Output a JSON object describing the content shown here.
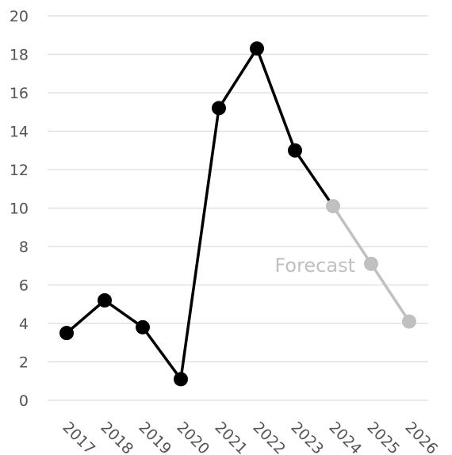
{
  "chart_data": {
    "type": "line",
    "title": "",
    "xlabel": "",
    "ylabel": "",
    "ylim": [
      0,
      20
    ],
    "yticks": [
      "0",
      "2",
      "4",
      "6",
      "8",
      "10",
      "12",
      "14",
      "16",
      "18",
      "20"
    ],
    "grid": true,
    "categories": [
      "2017",
      "2018",
      "2019",
      "2020",
      "2021",
      "2022",
      "2023",
      "2024",
      "2025",
      "2026"
    ],
    "series": [
      {
        "color": "#000000",
        "points": [
          {
            "x": "2017",
            "y": 3.5
          },
          {
            "x": "2018",
            "y": 5.2
          },
          {
            "x": "2019",
            "y": 3.8
          },
          {
            "x": "2020",
            "y": 1.1
          },
          {
            "x": "2021",
            "y": 15.2
          },
          {
            "x": "2022",
            "y": 18.3
          },
          {
            "x": "2023",
            "y": 13.0
          },
          {
            "x": "2024",
            "y": 10.1
          }
        ],
        "markers_through": "2023"
      },
      {
        "color": "#c0c0c0",
        "points": [
          {
            "x": "2024",
            "y": 10.1
          },
          {
            "x": "2025",
            "y": 7.1
          },
          {
            "x": "2026",
            "y": 4.1
          }
        ]
      }
    ],
    "annotations": [
      {
        "text": "Forecast",
        "color": "#c0c0c0"
      }
    ]
  }
}
